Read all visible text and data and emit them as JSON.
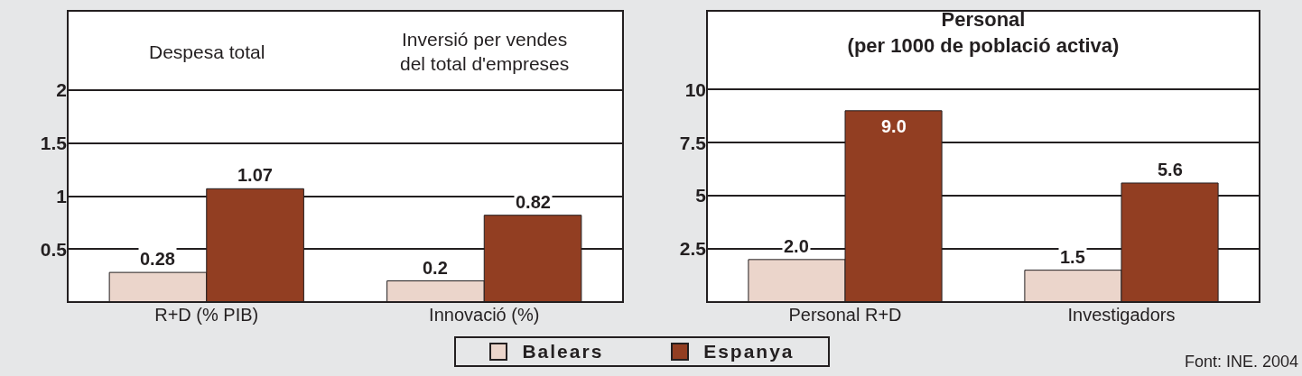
{
  "chart_data": [
    {
      "type": "bar",
      "categories": [
        "R+D (% PIB)",
        "Innovació (%)"
      ],
      "series": [
        {
          "name": "Balears",
          "color": "#ebd5cb",
          "values": [
            0.28,
            0.2
          ]
        },
        {
          "name": "Espanya",
          "color": "#923e22",
          "values": [
            1.07,
            0.82
          ]
        }
      ],
      "ylim": [
        0,
        2.75
      ],
      "yticks": [
        0.5,
        1,
        1.5,
        2
      ],
      "grid": "y",
      "data_labels": true,
      "legend": "bottom",
      "annotations": [
        "Despesa total",
        "Inversió per vendes del total d'empreses"
      ]
    },
    {
      "type": "bar",
      "title": "Personal (per 1000 de població activa)",
      "categories": [
        "Personal R+D",
        "Investigadors"
      ],
      "series": [
        {
          "color": "#ebd5cb",
          "values": [
            2.0,
            1.5
          ],
          "value_labels": [
            "2.0",
            "1.5"
          ]
        },
        {
          "color": "#923e22",
          "values": [
            9.0,
            5.6
          ],
          "value_labels": [
            "9.0",
            "5.6"
          ]
        }
      ],
      "ylim": [
        0,
        13.7
      ],
      "yticks": [
        2.5,
        5,
        7.5,
        10
      ],
      "grid": "y",
      "annotations": [
        "Font: INE. 2004"
      ]
    }
  ]
}
